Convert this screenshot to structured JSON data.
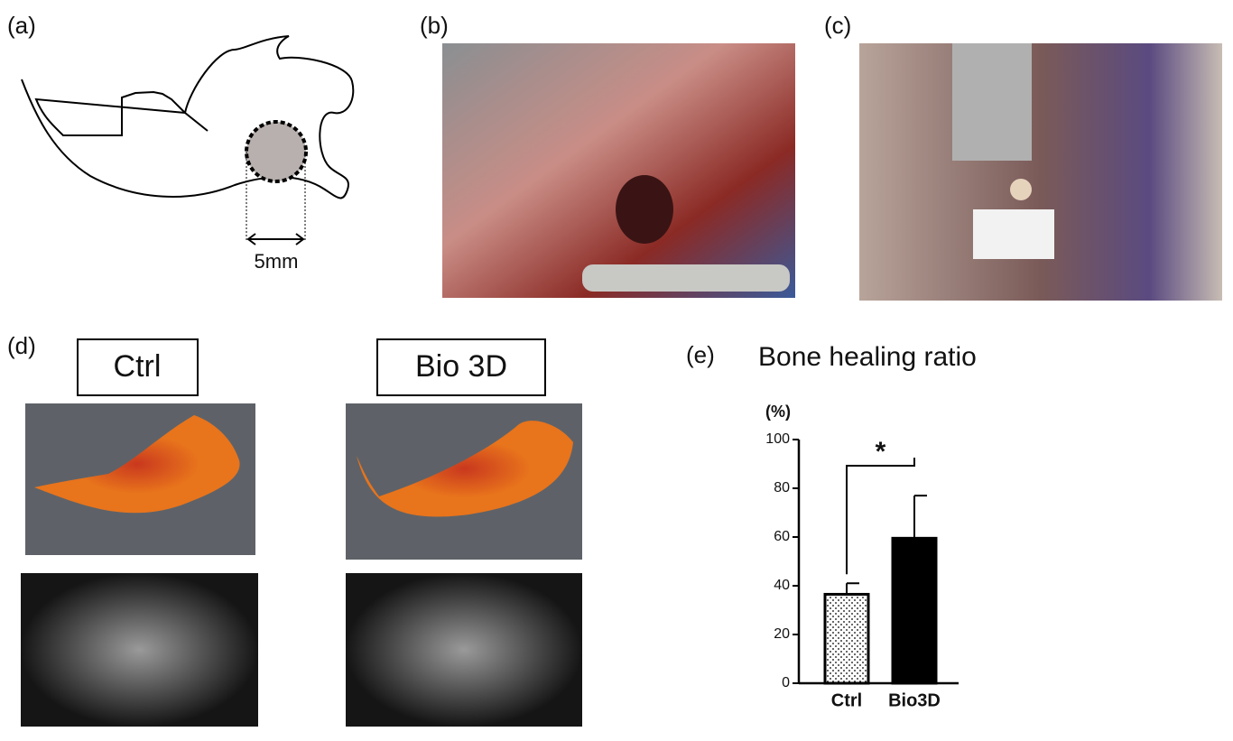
{
  "panels": {
    "a": {
      "label": "(a)",
      "scale": "5mm"
    },
    "b": {
      "label": "(b)"
    },
    "c": {
      "label": "(c)"
    },
    "d": {
      "label": "(d)",
      "groups": [
        "Ctrl",
        "Bio 3D"
      ]
    },
    "e": {
      "label": "(e)"
    }
  },
  "chart_data": {
    "type": "bar",
    "title": "Bone healing ratio",
    "y_label": "(%)",
    "categories": [
      "Ctrl",
      "Bio3D"
    ],
    "values": [
      36.5,
      59.5
    ],
    "errors": [
      4.5,
      17.5
    ],
    "colors": [
      "#ffffff",
      "#000000"
    ],
    "ylim": [
      0,
      100
    ],
    "yticks": [
      0,
      20,
      40,
      60,
      80,
      100
    ],
    "annotation": "*"
  }
}
